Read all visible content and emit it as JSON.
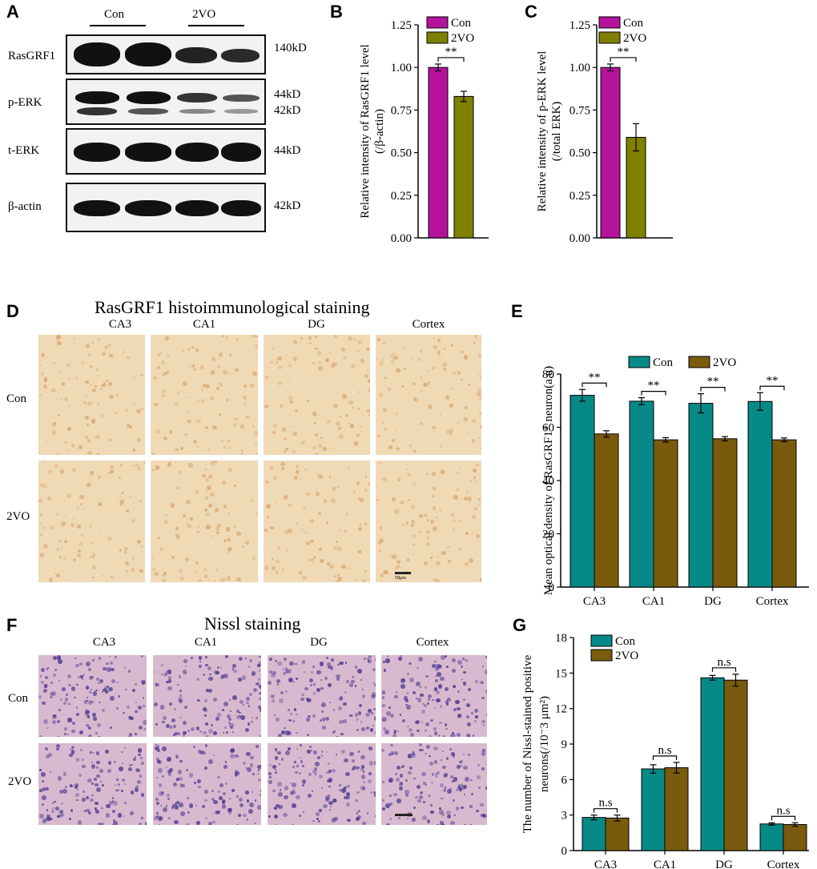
{
  "panels": {
    "A": {
      "letter": "A",
      "groups": [
        "Con",
        "2VO"
      ],
      "rows": [
        {
          "name": "RasGRF1",
          "kd": [
            "140kD"
          ]
        },
        {
          "name": "p-ERK",
          "kd": [
            "44kD",
            "42kD"
          ]
        },
        {
          "name": "t-ERK",
          "kd": [
            "44kD"
          ]
        },
        {
          "name": "β-actin",
          "kd": [
            "42kD"
          ]
        }
      ]
    },
    "B": {
      "letter": "B"
    },
    "C": {
      "letter": "C"
    },
    "D": {
      "letter": "D",
      "title": "RasGRF1 histoimmunological staining",
      "columns": [
        "CA3",
        "CA1",
        "DG",
        "Cortex"
      ],
      "rows": [
        "Con",
        "2VO"
      ],
      "scale": "50μm"
    },
    "E": {
      "letter": "E"
    },
    "F": {
      "letter": "F",
      "title": "Nissl staining",
      "columns": [
        "CA3",
        "CA1",
        "DG",
        "Cortex"
      ],
      "rows": [
        "Con",
        "2VO"
      ]
    },
    "G": {
      "letter": "G"
    }
  },
  "colors": {
    "con_bc": "#b5139b",
    "vo_bc": "#7f7f00",
    "con_eg": "#078a87",
    "vo_eg": "#7a5a0c",
    "ihc_bg": "#f0d9b5",
    "ihc_cell": "#d9a870",
    "nissl_bg": "#d9b9cf",
    "nissl_cell": "#4a3a8f"
  },
  "chart_data": [
    {
      "id": "B",
      "type": "bar",
      "categories": [
        ""
      ],
      "series": [
        {
          "name": "Con",
          "values": [
            1.0
          ],
          "errors": [
            0.02
          ]
        },
        {
          "name": "2VO",
          "values": [
            0.83
          ],
          "errors": [
            0.03
          ]
        }
      ],
      "ylabel_lines": [
        "Relative intensity of RasGRF1 level",
        "(/β-actin)"
      ],
      "ylim": [
        0,
        1.25
      ],
      "yticks": [
        "0.00",
        "0.25",
        "0.50",
        "0.75",
        "1.00",
        "1.25"
      ],
      "significance": [
        {
          "label": "**"
        }
      ],
      "legend": "top"
    },
    {
      "id": "C",
      "type": "bar",
      "categories": [
        ""
      ],
      "series": [
        {
          "name": "Con",
          "values": [
            1.0
          ],
          "errors": [
            0.02
          ]
        },
        {
          "name": "2VO",
          "values": [
            0.59
          ],
          "errors": [
            0.08
          ]
        }
      ],
      "ylabel_lines": [
        "Relative intensity of p-ERK level",
        "(/total ERK)"
      ],
      "ylim": [
        0,
        1.25
      ],
      "yticks": [
        "0.00",
        "0.25",
        "0.50",
        "0.75",
        "1.00",
        "1.25"
      ],
      "significance": [
        {
          "label": "**"
        }
      ],
      "legend": "top"
    },
    {
      "id": "E",
      "type": "bar",
      "categories": [
        "CA3",
        "CA1",
        "DG",
        "Cortex"
      ],
      "series": [
        {
          "name": "Con",
          "values": [
            72,
            69.8,
            69,
            69.7
          ],
          "errors": [
            2.2,
            1.3,
            3.6,
            3.3
          ]
        },
        {
          "name": "2VO",
          "values": [
            57.5,
            55.3,
            55.7,
            55.3
          ],
          "errors": [
            1.2,
            0.8,
            0.8,
            0.7
          ]
        }
      ],
      "ylabel": "Mean optical density of RasGRF1⁺ neuron(a.u)",
      "ylim": [
        0,
        80
      ],
      "yticks": [
        "0",
        "20",
        "40",
        "60",
        "80"
      ],
      "significance": [
        {
          "label": "**"
        },
        {
          "label": "**"
        },
        {
          "label": "**"
        },
        {
          "label": "**"
        }
      ],
      "legend": "top"
    },
    {
      "id": "G",
      "type": "bar",
      "categories": [
        "CA3",
        "CA1",
        "DG",
        "Cortex"
      ],
      "series": [
        {
          "name": "Con",
          "values": [
            2.8,
            6.9,
            14.6,
            2.25
          ],
          "errors": [
            0.2,
            0.35,
            0.2,
            0.1
          ]
        },
        {
          "name": "2VO",
          "values": [
            2.75,
            7.0,
            14.4,
            2.2
          ],
          "errors": [
            0.25,
            0.45,
            0.5,
            0.15
          ]
        }
      ],
      "ylabel_lines": [
        "The number of Nissl-stained positive",
        "neurons(/10⁻3 μm²)"
      ],
      "ylim": [
        0,
        18
      ],
      "yticks": [
        "0",
        "3",
        "6",
        "9",
        "12",
        "15",
        "18"
      ],
      "significance": [
        {
          "label": "n.s"
        },
        {
          "label": "n.s"
        },
        {
          "label": "n.s"
        },
        {
          "label": "n.s"
        }
      ],
      "legend": "top-left"
    }
  ]
}
